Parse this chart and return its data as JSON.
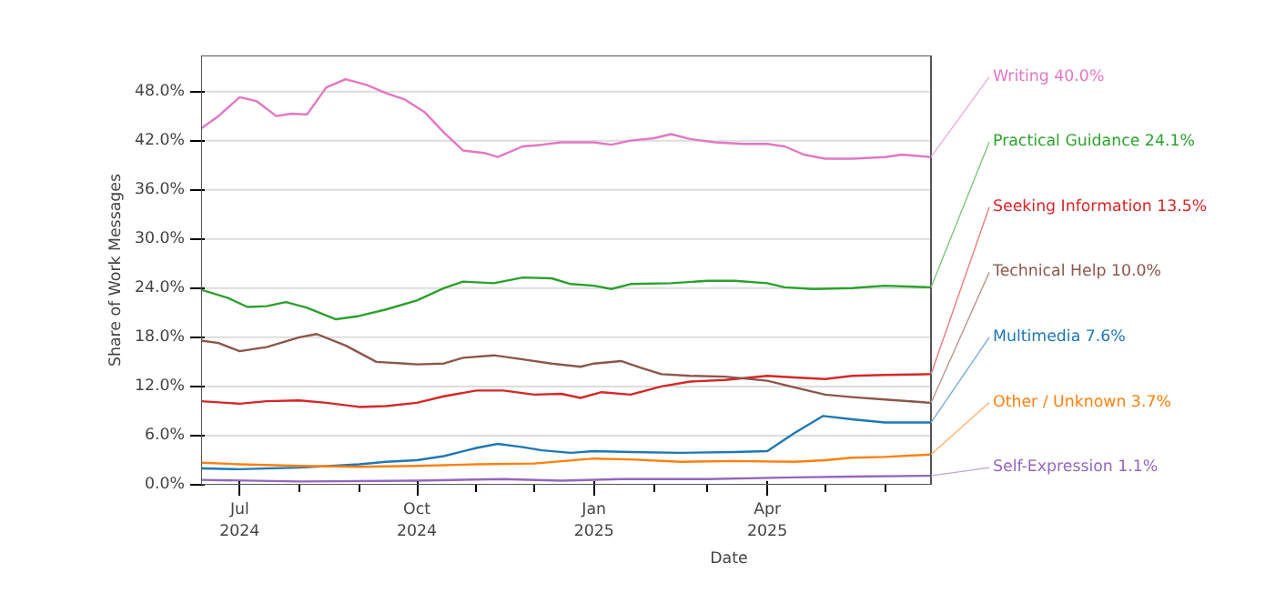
{
  "chart_data": {
    "type": "line",
    "xlabel": "Date",
    "ylabel": "Share of Work Messages",
    "legend": false,
    "grid": "y",
    "marker": "none",
    "line_style": "solid",
    "xlim": [
      "2024-06-11",
      "2025-06-25"
    ],
    "xticks": [
      {
        "value": "2024-07-01",
        "label": "Jul\n2024"
      },
      {
        "value": "2024-08-01",
        "label": null
      },
      {
        "value": "2024-09-01",
        "label": null
      },
      {
        "value": "2024-10-01",
        "label": "Oct\n2024"
      },
      {
        "value": "2024-11-01",
        "label": null
      },
      {
        "value": "2024-12-01",
        "label": null
      },
      {
        "value": "2025-01-01",
        "label": "Jan\n2025"
      },
      {
        "value": "2025-02-01",
        "label": null
      },
      {
        "value": "2025-03-01",
        "label": null
      },
      {
        "value": "2025-04-01",
        "label": "Apr\n2025"
      },
      {
        "value": "2025-05-01",
        "label": null
      },
      {
        "value": "2025-06-01",
        "label": null
      }
    ],
    "ylim": [
      0,
      52.4
    ],
    "yticks": [
      {
        "value": 0,
        "label": "0.0%"
      },
      {
        "value": 6,
        "label": "6.0%"
      },
      {
        "value": 12,
        "label": "12.0%"
      },
      {
        "value": 18,
        "label": "18.0%"
      },
      {
        "value": 24,
        "label": "24.0%"
      },
      {
        "value": 30,
        "label": "30.0%"
      },
      {
        "value": 36,
        "label": "36.0%"
      },
      {
        "value": 42,
        "label": "42.0%"
      },
      {
        "value": 48,
        "label": "48.0%"
      }
    ],
    "series": [
      {
        "name": "Writing",
        "color": "#e377c2",
        "x": [
          "2024-06-11",
          "2024-06-20",
          "2024-07-01",
          "2024-07-10",
          "2024-07-20",
          "2024-07-28",
          "2024-08-05",
          "2024-08-15",
          "2024-08-25",
          "2024-09-05",
          "2024-09-15",
          "2024-09-25",
          "2024-10-05",
          "2024-10-15",
          "2024-10-25",
          "2024-11-05",
          "2024-11-12",
          "2024-11-25",
          "2024-12-05",
          "2024-12-15",
          "2025-01-01",
          "2025-01-10",
          "2025-01-20",
          "2025-02-01",
          "2025-02-10",
          "2025-02-20",
          "2025-03-05",
          "2025-03-20",
          "2025-04-01",
          "2025-04-10",
          "2025-04-20",
          "2025-05-01",
          "2025-05-15",
          "2025-06-01",
          "2025-06-10",
          "2025-06-25"
        ],
        "values": [
          43.5,
          45,
          47.3,
          46.8,
          45,
          45.3,
          45.2,
          48.5,
          49.5,
          48.8,
          47.8,
          47,
          45.5,
          43,
          40.8,
          40.5,
          40,
          41.3,
          41.5,
          41.8,
          41.8,
          41.5,
          42,
          42.3,
          42.8,
          42.2,
          41.8,
          41.6,
          41.6,
          41.3,
          40.3,
          39.8,
          39.8,
          40.0,
          40.3,
          40.0
        ],
        "value_labels": [
          null,
          null,
          null,
          null,
          null,
          null,
          null,
          null,
          null,
          null,
          null,
          null,
          null,
          null,
          null,
          null,
          null,
          null,
          null,
          null,
          null,
          null,
          null,
          null,
          null,
          null,
          null,
          null,
          null,
          null,
          null,
          null,
          null,
          null,
          null,
          "40.0%"
        ]
      },
      {
        "name": "Practical Guidance",
        "color": "#2ca02c",
        "x": [
          "2024-06-11",
          "2024-06-25",
          "2024-07-05",
          "2024-07-15",
          "2024-07-25",
          "2024-08-05",
          "2024-08-20",
          "2024-09-01",
          "2024-09-15",
          "2024-10-01",
          "2024-10-15",
          "2024-10-25",
          "2024-11-10",
          "2024-11-25",
          "2024-12-10",
          "2024-12-20",
          "2025-01-01",
          "2025-01-10",
          "2025-01-20",
          "2025-02-10",
          "2025-03-01",
          "2025-03-15",
          "2025-04-01",
          "2025-04-10",
          "2025-04-25",
          "2025-05-15",
          "2025-06-01",
          "2025-06-25"
        ],
        "values": [
          23.8,
          22.8,
          21.7,
          21.8,
          22.3,
          21.6,
          20.2,
          20.6,
          21.4,
          22.5,
          24,
          24.8,
          24.6,
          25.3,
          25.2,
          24.5,
          24.3,
          23.9,
          24.5,
          24.6,
          24.9,
          24.9,
          24.6,
          24.1,
          23.9,
          24.0,
          24.3,
          24.1
        ],
        "value_labels": [
          null,
          null,
          null,
          null,
          null,
          null,
          null,
          null,
          null,
          null,
          null,
          null,
          null,
          null,
          null,
          null,
          null,
          null,
          null,
          null,
          null,
          null,
          null,
          null,
          null,
          null,
          null,
          "24.1%"
        ]
      },
      {
        "name": "Seeking Information",
        "color": "#d62728",
        "x": [
          "2024-06-11",
          "2024-07-01",
          "2024-07-15",
          "2024-08-01",
          "2024-08-15",
          "2024-09-01",
          "2024-09-15",
          "2024-10-01",
          "2024-10-15",
          "2024-11-01",
          "2024-11-15",
          "2024-12-01",
          "2024-12-15",
          "2024-12-25",
          "2025-01-05",
          "2025-01-20",
          "2025-02-05",
          "2025-02-20",
          "2025-03-10",
          "2025-04-01",
          "2025-04-15",
          "2025-05-01",
          "2025-05-15",
          "2025-06-01",
          "2025-06-25"
        ],
        "values": [
          10.2,
          9.9,
          10.2,
          10.3,
          10.0,
          9.5,
          9.6,
          10.0,
          10.8,
          11.5,
          11.5,
          11.0,
          11.1,
          10.6,
          11.3,
          11.0,
          12.0,
          12.6,
          12.8,
          13.3,
          13.1,
          12.9,
          13.3,
          13.4,
          13.5
        ],
        "value_labels": [
          null,
          null,
          null,
          null,
          null,
          null,
          null,
          null,
          null,
          null,
          null,
          null,
          null,
          null,
          null,
          null,
          null,
          null,
          null,
          null,
          null,
          null,
          null,
          null,
          "13.5%"
        ]
      },
      {
        "name": "Technical Help",
        "color": "#8c564b",
        "x": [
          "2024-06-11",
          "2024-06-20",
          "2024-07-01",
          "2024-07-15",
          "2024-08-01",
          "2024-08-10",
          "2024-08-25",
          "2024-09-10",
          "2024-09-25",
          "2024-10-01",
          "2024-10-15",
          "2024-10-25",
          "2024-11-10",
          "2024-11-25",
          "2024-12-10",
          "2024-12-25",
          "2025-01-01",
          "2025-01-15",
          "2025-01-25",
          "2025-02-05",
          "2025-02-20",
          "2025-03-10",
          "2025-04-01",
          "2025-04-15",
          "2025-05-01",
          "2025-05-15",
          "2025-06-01",
          "2025-06-25"
        ],
        "values": [
          17.6,
          17.3,
          16.3,
          16.8,
          18.0,
          18.4,
          17,
          15.0,
          14.8,
          14.7,
          14.8,
          15.5,
          15.8,
          15.3,
          14.8,
          14.4,
          14.8,
          15.1,
          14.3,
          13.5,
          13.3,
          13.2,
          12.7,
          11.9,
          11.0,
          10.7,
          10.4,
          10.0
        ],
        "value_labels": [
          null,
          null,
          null,
          null,
          null,
          null,
          null,
          null,
          null,
          null,
          null,
          null,
          null,
          null,
          null,
          null,
          null,
          null,
          null,
          null,
          null,
          null,
          null,
          null,
          null,
          null,
          null,
          "10.0%"
        ]
      },
      {
        "name": "Multimedia",
        "color": "#1f77b4",
        "x": [
          "2024-06-11",
          "2024-07-01",
          "2024-08-01",
          "2024-09-01",
          "2024-09-15",
          "2024-10-01",
          "2024-10-15",
          "2024-11-01",
          "2024-11-12",
          "2024-11-25",
          "2024-12-05",
          "2024-12-20",
          "2025-01-01",
          "2025-01-20",
          "2025-02-15",
          "2025-03-15",
          "2025-04-01",
          "2025-04-15",
          "2025-04-30",
          "2025-05-15",
          "2025-06-01",
          "2025-06-25"
        ],
        "values": [
          2.0,
          1.9,
          2.1,
          2.5,
          2.8,
          3.0,
          3.5,
          4.5,
          5.0,
          4.6,
          4.2,
          3.9,
          4.1,
          4.0,
          3.9,
          4.0,
          4.1,
          6.3,
          8.4,
          8.0,
          7.6,
          7.6
        ],
        "value_labels": [
          null,
          null,
          null,
          null,
          null,
          null,
          null,
          null,
          null,
          null,
          null,
          null,
          null,
          null,
          null,
          null,
          null,
          null,
          null,
          null,
          null,
          "7.6%"
        ]
      },
      {
        "name": "Other / Unknown",
        "color": "#ff7f0e",
        "x": [
          "2024-06-11",
          "2024-07-01",
          "2024-08-01",
          "2024-09-01",
          "2024-10-01",
          "2024-11-01",
          "2024-12-01",
          "2025-01-01",
          "2025-01-20",
          "2025-02-15",
          "2025-03-15",
          "2025-04-15",
          "2025-05-01",
          "2025-05-15",
          "2025-06-01",
          "2025-06-25"
        ],
        "values": [
          2.7,
          2.5,
          2.3,
          2.2,
          2.3,
          2.5,
          2.6,
          3.2,
          3.1,
          2.8,
          2.9,
          2.8,
          3.0,
          3.3,
          3.4,
          3.7
        ],
        "value_labels": [
          null,
          null,
          null,
          null,
          null,
          null,
          null,
          null,
          null,
          null,
          null,
          null,
          null,
          null,
          null,
          "3.7%"
        ]
      },
      {
        "name": "Self-Expression",
        "color": "#9467bd",
        "x": [
          "2024-06-11",
          "2024-08-01",
          "2024-10-01",
          "2024-11-15",
          "2024-12-15",
          "2025-01-15",
          "2025-03-01",
          "2025-04-15",
          "2025-05-15",
          "2025-06-25"
        ],
        "values": [
          0.6,
          0.4,
          0.5,
          0.7,
          0.5,
          0.7,
          0.7,
          0.9,
          1.0,
          1.1
        ],
        "value_labels": [
          null,
          null,
          null,
          null,
          null,
          null,
          null,
          null,
          null,
          "1.1%"
        ]
      }
    ]
  }
}
